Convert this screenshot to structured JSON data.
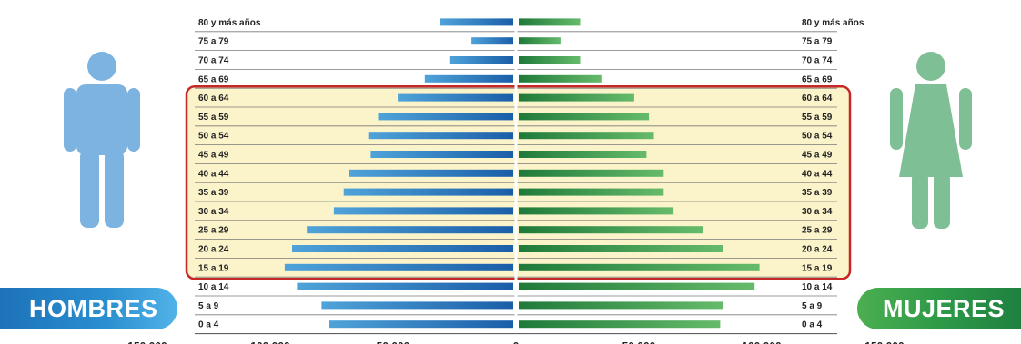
{
  "badges": {
    "men": "HOMBRES",
    "women": "MUJERES"
  },
  "icons": {
    "men": "man-icon",
    "women": "woman-icon"
  },
  "colors": {
    "men_dark": "#1a5ea8",
    "men_light": "#4fa3d9",
    "women_dark": "#1f7a3a",
    "women_light": "#66bb6a",
    "highlight_fill": "#fbf3c9",
    "highlight_border": "#c62828",
    "men_icon": "#7db3e0",
    "women_icon": "#7fbf95"
  },
  "chart_data": {
    "type": "bar",
    "orientation": "horizontal-pyramid",
    "categories": [
      "80 y más años",
      "75 a 79",
      "70 a 74",
      "65 a 69",
      "60 a 64",
      "55 a 59",
      "50 a 54",
      "45 a 49",
      "40 a 44",
      "35 a 39",
      "30 a 34",
      "25 a 29",
      "20 a 24",
      "15 a 19",
      "10 a 14",
      "5 a 9",
      "0 a 4"
    ],
    "series": [
      {
        "name": "HOMBRES",
        "values": [
          30000,
          17000,
          26000,
          36000,
          47000,
          55000,
          59000,
          58000,
          67000,
          69000,
          73000,
          84000,
          90000,
          93000,
          88000,
          78000,
          75000
        ]
      },
      {
        "name": "MUJERES",
        "values": [
          25000,
          17000,
          25000,
          34000,
          47000,
          53000,
          55000,
          52000,
          59000,
          59000,
          63000,
          75000,
          83000,
          98000,
          96000,
          83000,
          82000
        ]
      }
    ],
    "xticks": [
      "150.000",
      "100.000",
      "50.000",
      "0",
      "50.000",
      "100.000",
      "150.000"
    ],
    "highlight": {
      "from": "60 a 64",
      "to": "15 a 19"
    },
    "grid": "row separators"
  }
}
